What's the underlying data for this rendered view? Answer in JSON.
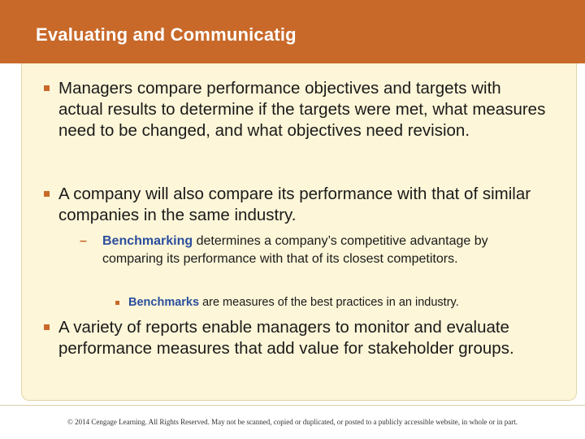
{
  "slide": {
    "title": "Evaluating and Communicatig"
  },
  "bullets": {
    "b1": "Managers compare performance objectives and targets with actual results to determine if the targets were met, what measures need to be changed, and what objectives need revision.",
    "b2": "A company will also compare its performance with that of similar companies in the same industry.",
    "sub1_term": "Benchmarking",
    "sub1_text": " determines a company’s competitive advantage by comparing its performance with that of its closest competitors.",
    "sub1_marker": "–",
    "subsub1_term": "Benchmarks",
    "subsub1_text": " are measures of the best practices in an industry.",
    "b3": "A variety of reports enable managers to monitor and evaluate performance measures that add value for stakeholder groups."
  },
  "footer": {
    "copyright": "© 2014 Cengage Learning. All Rights Reserved. May not be scanned, copied or duplicated, or posted to a publicly accessible website, in whole or in part."
  },
  "colors": {
    "header": "#c8692a",
    "panel": "#fdf6d8",
    "term": "#2b4f9e"
  }
}
